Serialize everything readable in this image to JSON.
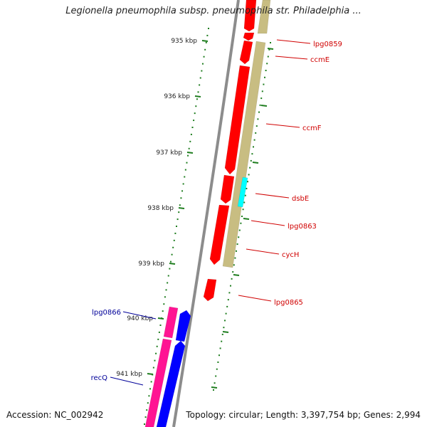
{
  "title": "Legionella pneumophila subsp. pneumophila str. Philadelphia ...",
  "accession": "Accession: NC_002942",
  "summary": "Topology: circular; Length: 3,397,754 bp; Genes: 2,994",
  "colors": {
    "backbone": "#8c8c8c",
    "tick": "#1e7d1e",
    "gene_red": "#ff0000",
    "gene_tan": "#c8bd82",
    "gene_cyan": "#00ffff",
    "gene_pink": "#ff1493",
    "gene_blue": "#0000ff",
    "label_red": "#d00000",
    "label_blue": "#000099"
  },
  "scale": {
    "ticks": [
      {
        "label": "935 kbp"
      },
      {
        "label": "936 kbp"
      },
      {
        "label": "937 kbp"
      },
      {
        "label": "938 kbp"
      },
      {
        "label": "939 kbp"
      },
      {
        "label": "940 kbp"
      },
      {
        "label": "941 kbp"
      }
    ]
  },
  "gene_labels": [
    {
      "label": "lpg0859"
    },
    {
      "label": "ccmE"
    },
    {
      "label": "ccmF"
    },
    {
      "label": "dsbE"
    },
    {
      "label": "lpg0863"
    },
    {
      "label": "cycH"
    },
    {
      "label": "lpg0865"
    },
    {
      "label": "lpg0866"
    },
    {
      "label": "recQ"
    }
  ]
}
